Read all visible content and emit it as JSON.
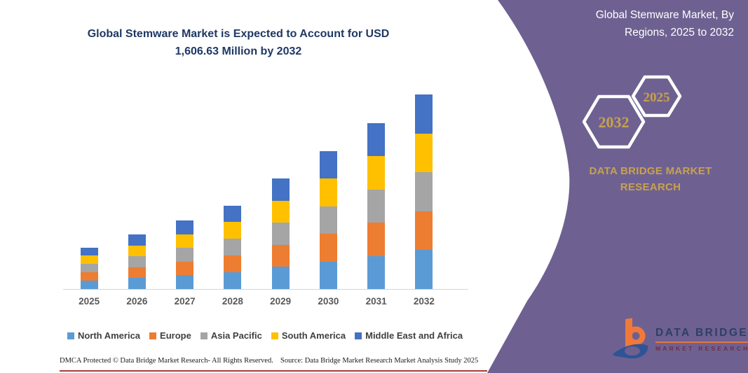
{
  "left_panel": {
    "title_line1": "Global Stemware Market is Expected to Account for USD",
    "title_line2": "1,606.63 Million by 2032",
    "footer_left": "DMCA Protected © Data Bridge Market Research-  All Rights Reserved.",
    "footer_right": "Source: Data Bridge Market Research  Market Analysis Study 2025"
  },
  "right_panel": {
    "title_line1": "Global Stemware Market, By",
    "title_line2": "Regions, 2025 to 2032",
    "hexagon_back_year": "2032",
    "hexagon_front_year": "2025",
    "brand_line1": "DATA BRIDGE MARKET",
    "brand_line2": "RESEARCH",
    "logo_name": "DATA BRIDGE",
    "logo_subtitle": "MARKET RESEARCH"
  },
  "chart_data": {
    "type": "bar",
    "stacked": true,
    "title": "Global Stemware Market is Expected to Account for USD 1,606.63 Million by 2032",
    "unit": "USD Million",
    "categories": [
      "2025",
      "2026",
      "2027",
      "2028",
      "2029",
      "2030",
      "2031",
      "2032"
    ],
    "series": [
      {
        "name": "North America",
        "color": "#5B9BD5",
        "values": [
          68.6,
          90,
          113,
          138,
          182.4,
          228,
          274,
          321.33
        ]
      },
      {
        "name": "Europe",
        "color": "#ED7D31",
        "values": [
          68.6,
          90,
          113,
          138,
          182.4,
          228,
          274,
          321.33
        ]
      },
      {
        "name": "Asia Pacific",
        "color": "#A5A5A5",
        "values": [
          68.6,
          90,
          113,
          138,
          182.4,
          228,
          274,
          321.33
        ]
      },
      {
        "name": "South America",
        "color": "#FFC000",
        "values": [
          68.6,
          90,
          113,
          138,
          182.4,
          228,
          274,
          321.33
        ]
      },
      {
        "name": "Middle East and Africa",
        "color": "#4472C4",
        "values": [
          68.6,
          90,
          113,
          138,
          182.4,
          228,
          274,
          321.33
        ]
      }
    ],
    "totals": [
      343,
      450,
      565,
      690,
      912,
      1140,
      1370,
      1606.63
    ],
    "annotated_value_2032": "1,606.63",
    "xlabel": "",
    "ylabel": "",
    "ylim": [
      0,
      1700
    ],
    "grid": false,
    "legend_position": "bottom"
  },
  "colors": {
    "panel_purple": "#6E6191",
    "gold": "#C9A14E",
    "title_navy": "#1F3864",
    "axis_label_gray": "#595959",
    "legend_text_gray": "#404040",
    "axis_line_gray": "#D6D6D6",
    "footer_rule_red": "#A93A3A",
    "logo_orange": "#F0793A",
    "logo_blue": "#2F5496"
  }
}
